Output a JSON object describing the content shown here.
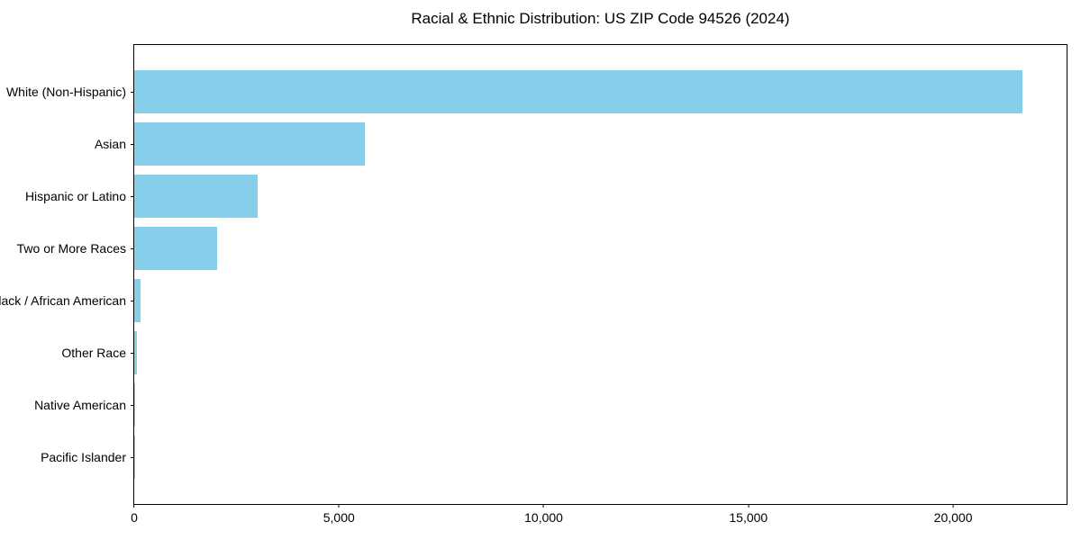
{
  "chart_data": {
    "type": "bar",
    "orientation": "horizontal",
    "title": "Racial & Ethnic Distribution: US ZIP Code 94526 (2024)",
    "categories": [
      "White (Non-Hispanic)",
      "Asian",
      "Hispanic or Latino",
      "Two or More Races",
      "Black / African American",
      "Other Race",
      "Native American",
      "Pacific Islander"
    ],
    "values": [
      21700,
      5630,
      3020,
      2020,
      150,
      65,
      20,
      10
    ],
    "xlabel": "",
    "ylabel": "",
    "xlim": [
      0,
      22770
    ],
    "xticks": [
      0,
      5000,
      10000,
      15000,
      20000
    ],
    "xticklabels": [
      "0",
      "5,000",
      "10,000",
      "15,000",
      "20,000"
    ],
    "bar_color": "#87CEEB",
    "grid": false,
    "legend_position": "none"
  }
}
